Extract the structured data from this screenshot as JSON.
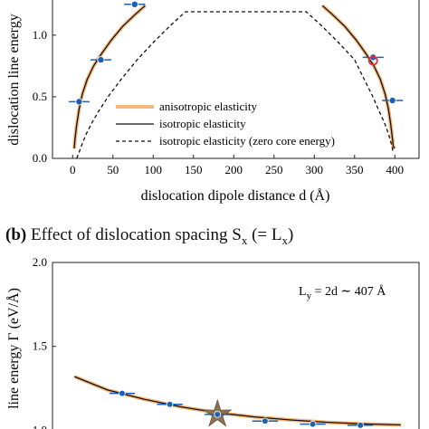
{
  "panel_b": {
    "tag": "(b)",
    "heading": "Effect of dislocation spacing S",
    "heading_sub": "x",
    "heading_tail": " (= L",
    "heading_tail_sub": "x",
    "heading_close": ")"
  },
  "chart_data": [
    {
      "panel": "a",
      "type": "line",
      "xlabel": "dislocation dipole distance d (Å)",
      "ylabel": "dislocation line energy",
      "xlim": [
        -25,
        430
      ],
      "ylim": [
        0.0,
        1.3
      ],
      "xticks": [
        0,
        50,
        100,
        150,
        200,
        250,
        300,
        350,
        400
      ],
      "yticks": [
        "0.0",
        "0.5",
        "1.0"
      ],
      "ytick_values": [
        0.0,
        0.5,
        1.0
      ],
      "legend_position": "lower-center",
      "series": [
        {
          "name": "anisotropic elasticity",
          "style": "solid-thick",
          "color": "#f5b87a",
          "x": [
            2,
            3,
            5,
            8,
            12,
            18,
            26,
            36,
            48,
            62,
            78,
            90,
            310,
            322,
            338,
            352,
            364,
            374,
            382,
            388,
            392,
            395,
            397,
            398,
            399.5
          ],
          "y": [
            0.08,
            0.16,
            0.27,
            0.4,
            0.52,
            0.64,
            0.75,
            0.85,
            0.96,
            1.07,
            1.17,
            1.24,
            1.24,
            1.17,
            1.07,
            0.96,
            0.85,
            0.75,
            0.64,
            0.52,
            0.4,
            0.27,
            0.16,
            0.1,
            0.08
          ]
        },
        {
          "name": "isotropic elasticity",
          "style": "solid",
          "color": "#111111",
          "x": [
            2,
            3,
            5,
            8,
            12,
            18,
            26,
            36,
            48,
            62,
            78,
            90,
            310,
            322,
            338,
            352,
            364,
            374,
            382,
            388,
            392,
            395,
            397,
            398,
            399.5
          ],
          "y": [
            0.08,
            0.16,
            0.27,
            0.4,
            0.52,
            0.64,
            0.75,
            0.85,
            0.96,
            1.07,
            1.17,
            1.24,
            1.24,
            1.17,
            1.07,
            0.96,
            0.85,
            0.75,
            0.64,
            0.52,
            0.4,
            0.27,
            0.16,
            0.1,
            0.08
          ]
        },
        {
          "name": "isotropic elasticity (zero core energy)",
          "style": "dashed",
          "color": "#111111",
          "x": [
            5,
            8,
            12,
            17,
            24,
            33,
            45,
            60,
            80,
            100,
            120,
            140,
            290,
            310,
            330,
            350,
            362,
            372,
            380,
            387,
            392,
            395.5,
            398
          ],
          "y": [
            0.0,
            0.05,
            0.12,
            0.2,
            0.29,
            0.39,
            0.51,
            0.64,
            0.8,
            0.94,
            1.07,
            1.19,
            1.19,
            1.07,
            0.94,
            0.8,
            0.64,
            0.51,
            0.39,
            0.29,
            0.2,
            0.12,
            0.05
          ]
        }
      ],
      "points": [
        {
          "x": 8,
          "y": 0.46,
          "xerr": 13
        },
        {
          "x": 35,
          "y": 0.8,
          "xerr": 13
        },
        {
          "x": 77,
          "y": 1.25,
          "xerr": 13
        },
        {
          "x": 373,
          "y": 0.82,
          "xerr": 13
        },
        {
          "x": 397,
          "y": 0.47,
          "xerr": 13
        }
      ],
      "highlight_points": [
        {
          "x": 373,
          "y": 0.8
        }
      ],
      "marker_color": "#1f5fb3",
      "errorbar_color": "#1f5fb3",
      "highlight_color": "#e0303a"
    },
    {
      "panel": "b",
      "type": "line",
      "xlabel": "",
      "ylabel": "line energy Γ (eV/Å)",
      "ylim": [
        0.9,
        2.0
      ],
      "xlim": [
        0,
        10
      ],
      "yticks": [
        "1.0",
        "1.5",
        "2.0"
      ],
      "ytick_values": [
        1.0,
        1.5,
        2.0
      ],
      "annotation": "L",
      "annotation_sub": "y",
      "annotation_tail": " = 2d ∼ 407 Å",
      "series": [
        {
          "name": "",
          "style": "solid-thick",
          "color": "#f5b87a",
          "x": [
            0.6,
            1.5,
            2.5,
            3.5,
            4.5,
            5.5,
            6.5,
            7.5,
            8.5,
            9.5
          ],
          "y": [
            1.32,
            1.24,
            1.185,
            1.14,
            1.105,
            1.08,
            1.062,
            1.048,
            1.038,
            1.032
          ]
        },
        {
          "name": "",
          "style": "solid",
          "color": "#111111",
          "x": [
            0.6,
            1.5,
            2.5,
            3.5,
            4.5,
            5.5,
            6.5,
            7.5,
            8.5,
            9.5
          ],
          "y": [
            1.32,
            1.24,
            1.185,
            1.14,
            1.105,
            1.08,
            1.062,
            1.048,
            1.038,
            1.032
          ]
        }
      ],
      "points": [
        {
          "x": 1.9,
          "y": 1.22,
          "xerr": 0.35
        },
        {
          "x": 3.2,
          "y": 1.155,
          "xerr": 0.35
        },
        {
          "x": 4.5,
          "y": 1.095,
          "xerr": 0.35
        },
        {
          "x": 5.8,
          "y": 1.055,
          "xerr": 0.35
        },
        {
          "x": 7.1,
          "y": 1.037,
          "xerr": 0.35
        },
        {
          "x": 8.4,
          "y": 1.03,
          "xerr": 0.35
        }
      ],
      "star_point": {
        "x": 4.5,
        "y": 1.095
      },
      "star_color": "#8c7250",
      "marker_color": "#1f5fb3"
    }
  ]
}
